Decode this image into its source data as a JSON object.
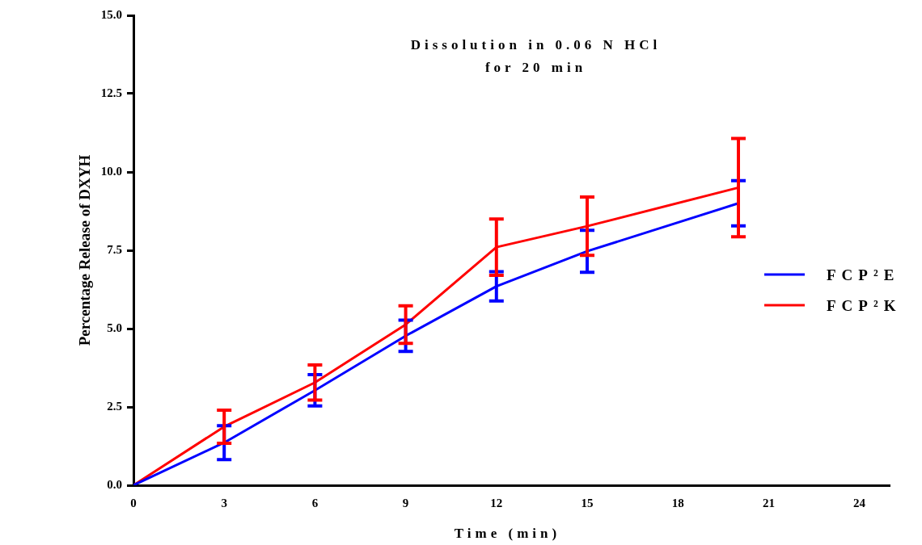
{
  "chart_data": {
    "type": "line",
    "title": "Dissolution in 0.06 N HCl",
    "subtitle": "for 20 min",
    "xlabel": "Time (min)",
    "ylabel": "Percentage Release of DXYH",
    "x": [
      0,
      3,
      6,
      9,
      12,
      15,
      20
    ],
    "series": [
      {
        "name": "FCP²E",
        "color": "#0000ff",
        "values": [
          0,
          1.36,
          3.03,
          4.77,
          6.35,
          7.47,
          9.0
        ],
        "errors": [
          null,
          0.54,
          0.5,
          0.5,
          0.47,
          0.67,
          0.72
        ]
      },
      {
        "name": "FCP²K",
        "color": "#ff0000",
        "values": [
          0,
          1.87,
          3.28,
          5.13,
          7.6,
          8.27,
          9.5
        ],
        "errors": [
          null,
          0.53,
          0.56,
          0.6,
          0.9,
          0.93,
          1.57
        ]
      }
    ],
    "xlim": [
      0,
      25
    ],
    "xticks": [
      0,
      3,
      6,
      9,
      12,
      15,
      18,
      21,
      24
    ],
    "ylim": [
      0,
      15
    ],
    "yticks": [
      {
        "value": 0,
        "label": "0.0"
      },
      {
        "value": 2.5,
        "label": "2.5"
      },
      {
        "value": 5,
        "label": "5.0"
      },
      {
        "value": 7.5,
        "label": "7.5"
      },
      {
        "value": 10,
        "label": "10.0"
      },
      {
        "value": 12.5,
        "label": "12.5"
      },
      {
        "value": 15,
        "label": "15.0"
      }
    ],
    "grid": false,
    "legend": "right",
    "marker": "none",
    "line_style": "solid"
  }
}
